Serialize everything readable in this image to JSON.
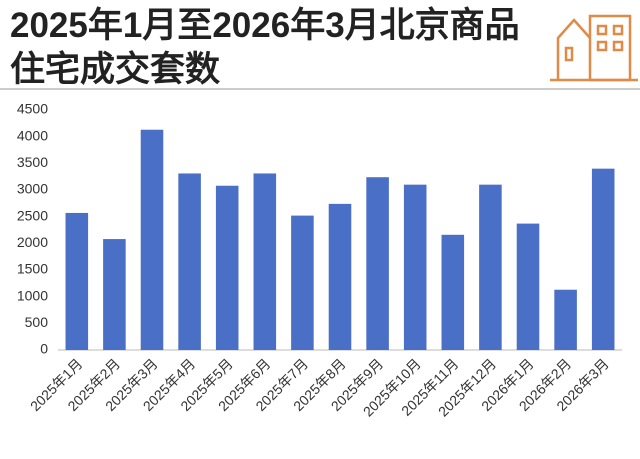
{
  "chart_data": {
    "type": "bar",
    "title": "2025年1月至2026年3月北京商品住宅成交套数",
    "categories": [
      "2025年1月",
      "2025年2月",
      "2025年3月",
      "2025年4月",
      "2025年5月",
      "2025年6月",
      "2025年7月",
      "2025年8月",
      "2025年9月",
      "2025年10月",
      "2025年11月",
      "2025年12月",
      "2026年1月",
      "2026年2月",
      "2026年3月"
    ],
    "values": [
      2570,
      2080,
      4130,
      3310,
      3080,
      3310,
      2520,
      2740,
      3240,
      3100,
      2160,
      3100,
      2370,
      1130,
      3400
    ],
    "color": "#4a6fc6",
    "ylim": [
      0,
      4500
    ],
    "yticks": [
      0,
      500,
      1000,
      1500,
      2000,
      2500,
      3000,
      3500,
      4000,
      4500
    ],
    "grid": false
  }
}
